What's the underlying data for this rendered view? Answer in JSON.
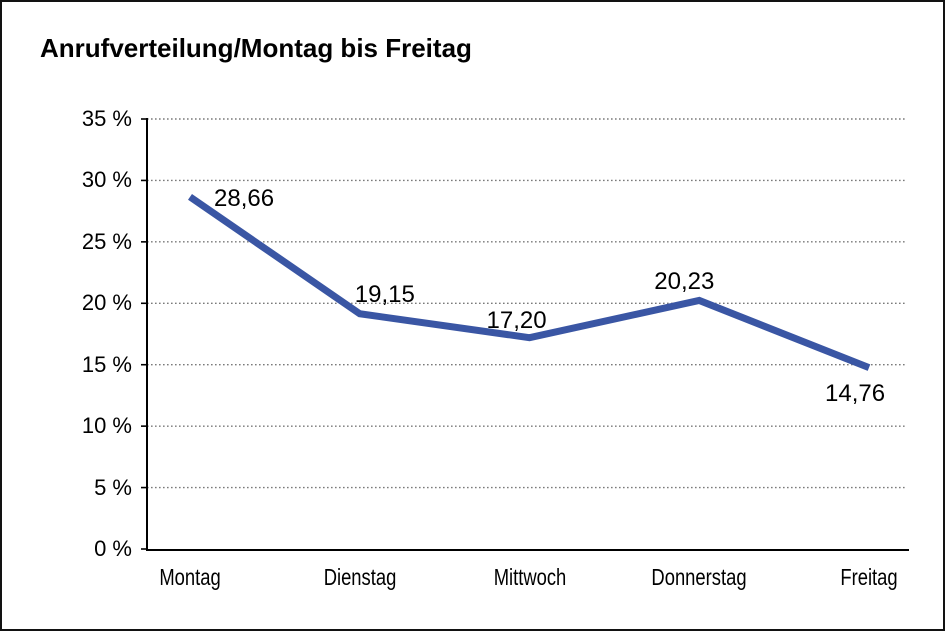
{
  "chart": {
    "title": "Anrufverteilung/Montag bis Freitag"
  },
  "chart_data": {
    "type": "line",
    "title": "Anrufverteilung/Montag bis Freitag",
    "categories": [
      "Montag",
      "Dienstag",
      "Mittwoch",
      "Donnerstag",
      "Freitag"
    ],
    "values": [
      28.66,
      19.15,
      17.2,
      20.23,
      14.76
    ],
    "point_labels": [
      "28,66",
      "19,15",
      "17,20",
      "20,23",
      "14,76"
    ],
    "ylim": [
      0,
      35
    ],
    "ytick_step": 5,
    "ytick_labels": [
      "0 %",
      "5 %",
      "10 %",
      "15 %",
      "20 %",
      "25 %",
      "30 %",
      "35 %"
    ],
    "xlabel": "",
    "ylabel": "",
    "legend": "none",
    "grid": "horizontal-dotted",
    "line_color": "#3A56A4",
    "grid_color": "#7a7a7a",
    "axis_color": "#000000",
    "text_color": "#000000"
  }
}
